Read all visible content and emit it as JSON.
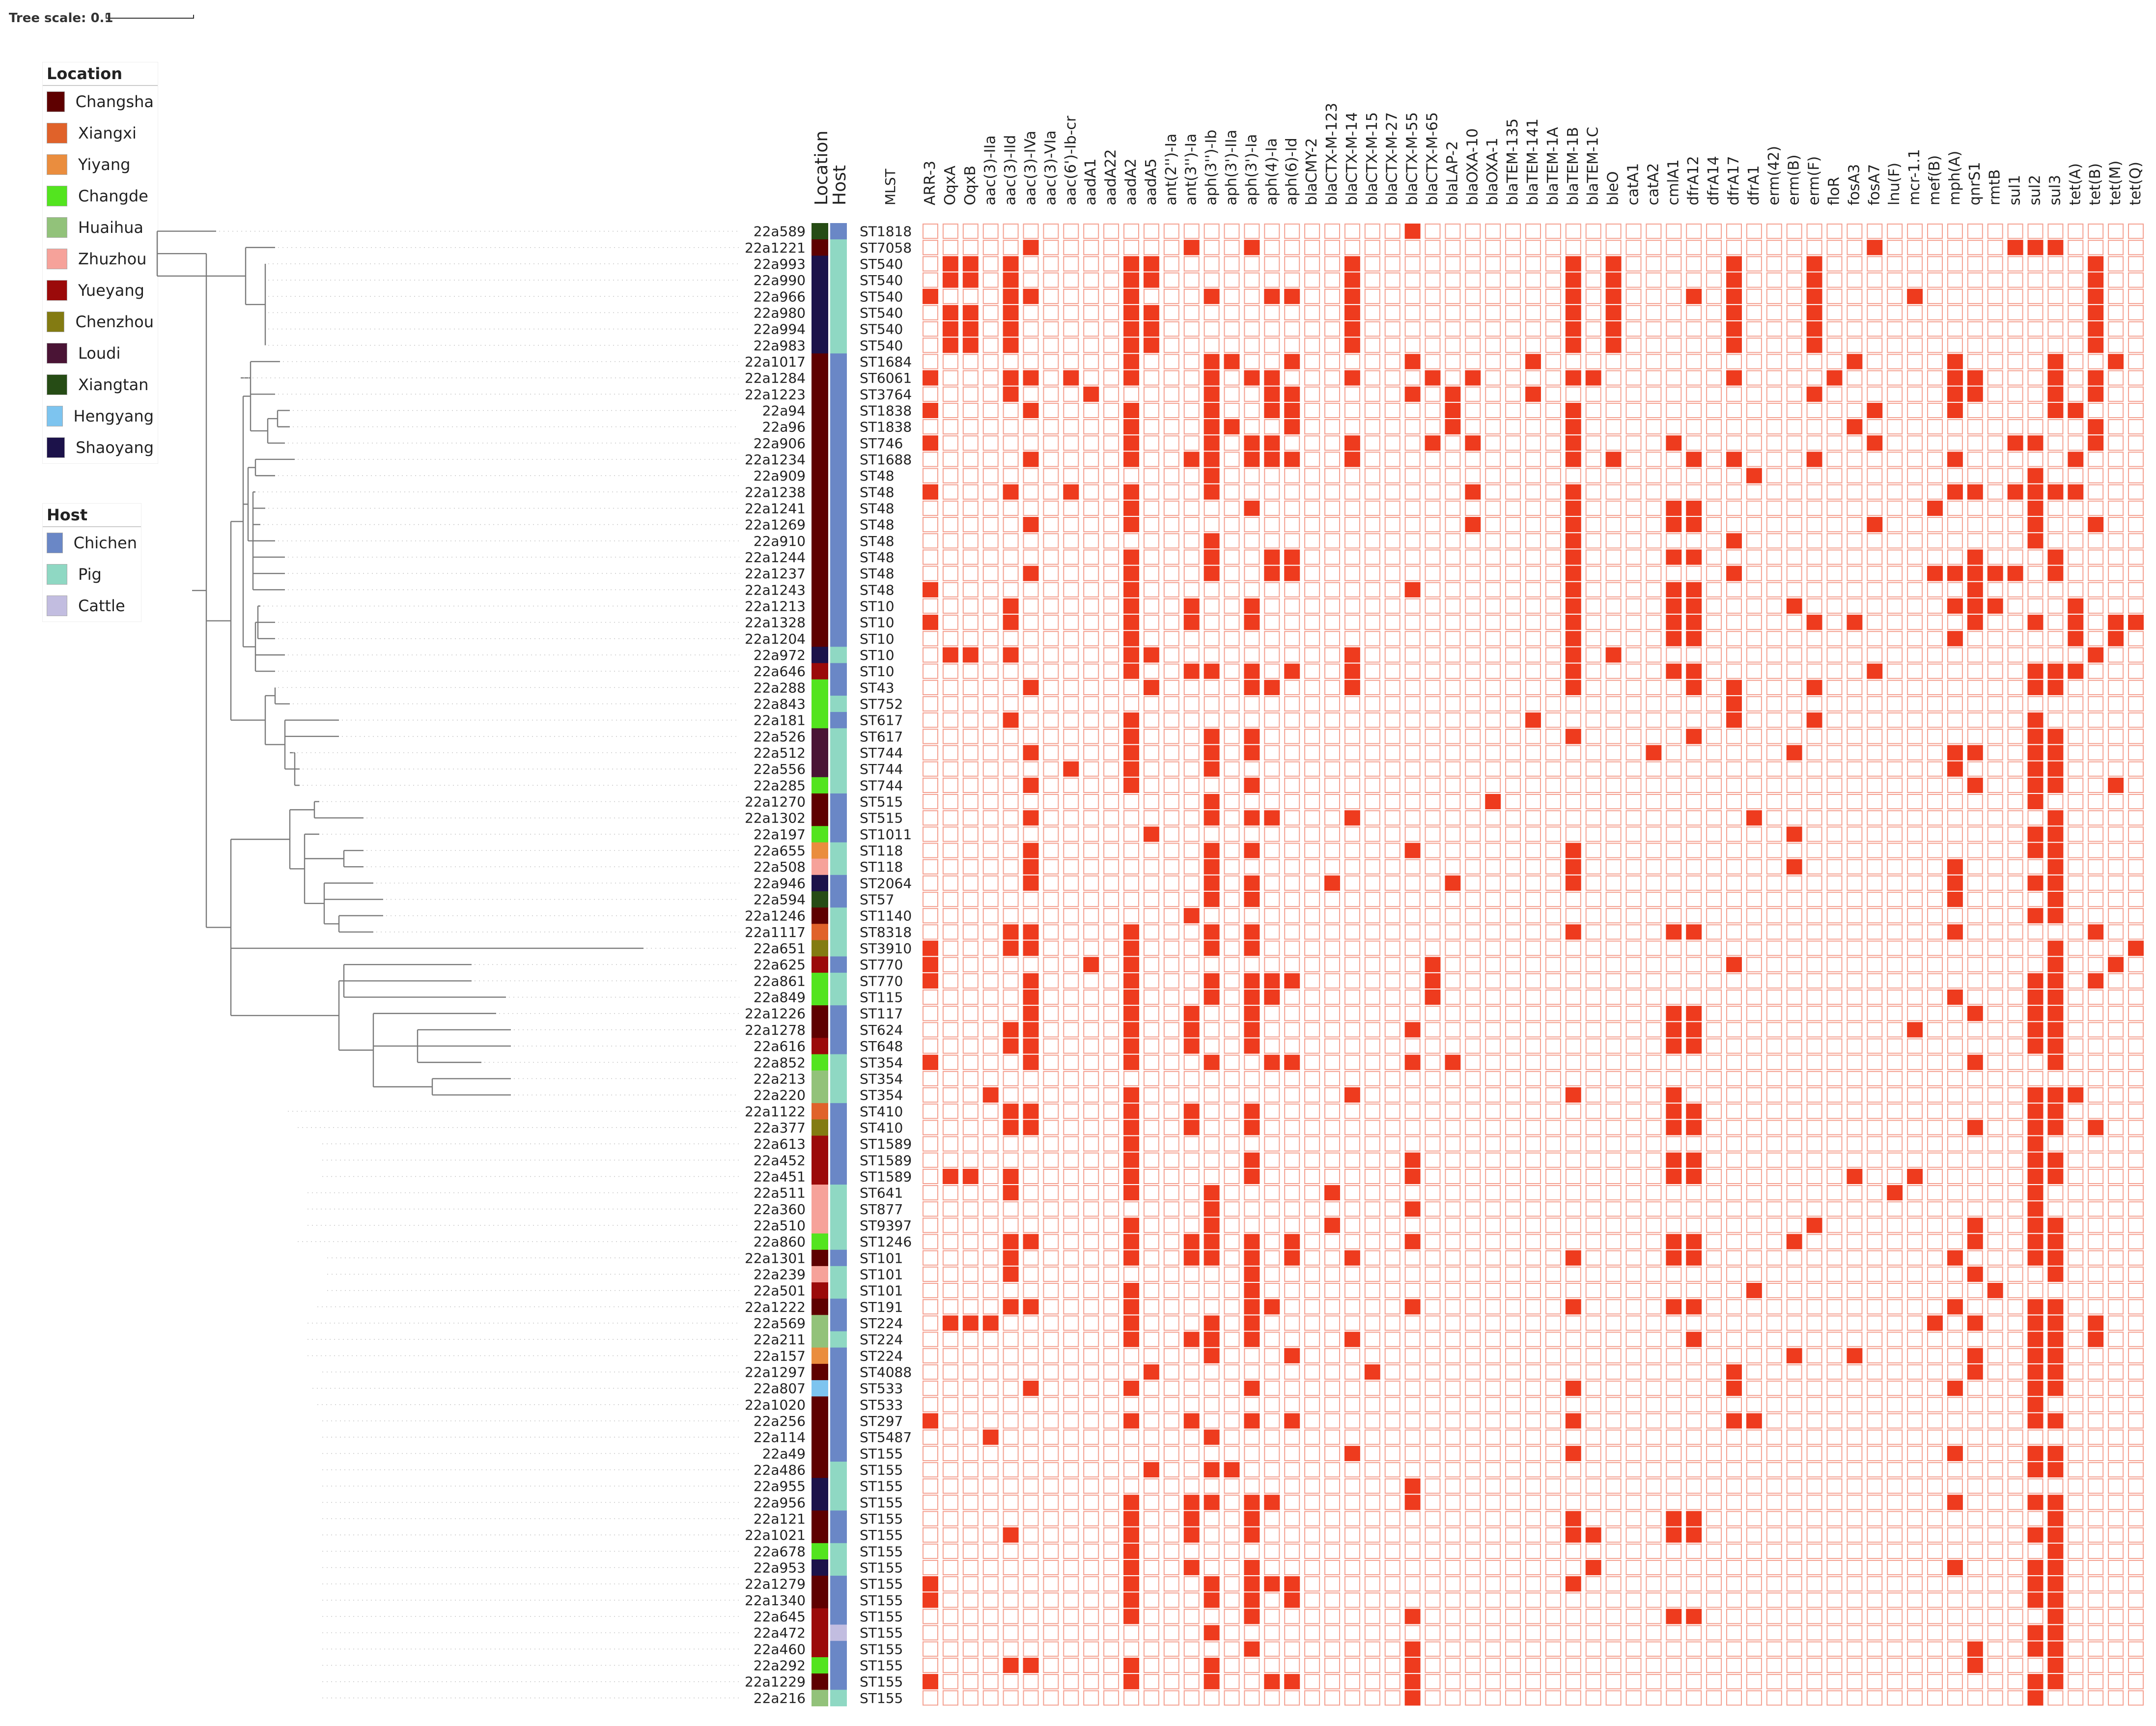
{
  "scale": {
    "label": "Tree scale: 0.1"
  },
  "headers": {
    "location": "Location",
    "host": "Host",
    "mlst": "MLST"
  },
  "legend_location": {
    "title": "Location",
    "items": [
      {
        "label": "Changsha",
        "color": "#5e0000"
      },
      {
        "label": "Xiangxi",
        "color": "#e0622a"
      },
      {
        "label": "Yiyang",
        "color": "#ea8d3e"
      },
      {
        "label": "Changde",
        "color": "#53e41f"
      },
      {
        "label": "Huaihua",
        "color": "#92c27a"
      },
      {
        "label": "Zhuzhou",
        "color": "#f6a29a"
      },
      {
        "label": "Yueyang",
        "color": "#9b0a0a"
      },
      {
        "label": "Chenzhou",
        "color": "#837b12"
      },
      {
        "label": "Loudi",
        "color": "#4a1435"
      },
      {
        "label": "Xiangtan",
        "color": "#264c15"
      },
      {
        "label": "Hengyang",
        "color": "#7dc4ef"
      },
      {
        "label": "Shaoyang",
        "color": "#1c124a"
      }
    ]
  },
  "legend_host": {
    "title": "Host",
    "items": [
      {
        "label": "Chichen",
        "color": "#6a87c6"
      },
      {
        "label": "Pig",
        "color": "#8fd8c3"
      },
      {
        "label": "Cattle",
        "color": "#c2bde0"
      }
    ]
  },
  "colors": {
    "present": "#ee3b1e",
    "absent_stroke": "#f4a090",
    "tree": "#7a7a7a",
    "dots": "#c8c8c8"
  },
  "genes": [
    "ARR-3",
    "OqxA",
    "OqxB",
    "aac(3)-IIa",
    "aac(3)-IId",
    "aac(3)-IVa",
    "aac(3)-VIa",
    "aac(6')-Ib-cr",
    "aadA1",
    "aadA22",
    "aadA2",
    "aadA5",
    "ant(2'')-Ia",
    "ant(3'')-Ia",
    "aph(3'')-Ib",
    "aph(3')-IIa",
    "aph(3')-Ia",
    "aph(4)-Ia",
    "aph(6)-Id",
    "blaCMY-2",
    "blaCTX-M-123",
    "blaCTX-M-14",
    "blaCTX-M-15",
    "blaCTX-M-27",
    "blaCTX-M-55",
    "blaCTX-M-65",
    "blaLAP-2",
    "blaOXA-10",
    "blaOXA-1",
    "blaTEM-135",
    "blaTEM-141",
    "blaTEM-1A",
    "blaTEM-1B",
    "blaTEM-1C",
    "bleO",
    "catA1",
    "catA2",
    "cmlA1",
    "dfrA12",
    "dfrA14",
    "dfrA17",
    "dfrA1",
    "erm(42)",
    "erm(B)",
    "erm(F)",
    "floR",
    "fosA3",
    "fosA7",
    "lnu(F)",
    "mcr-1.1",
    "mef(B)",
    "mph(A)",
    "qnrS1",
    "rmtB",
    "sul1",
    "sul2",
    "sul3",
    "tet(A)",
    "tet(B)",
    "tet(M)",
    "tet(Q)"
  ],
  "samples": [
    {
      "id": "22a589",
      "st": "ST1818",
      "loc": "Xiangtan",
      "host": "Chichen"
    },
    {
      "id": "22a1221",
      "st": "ST7058",
      "loc": "Changsha",
      "host": "Pig"
    },
    {
      "id": "22a993",
      "st": "ST540",
      "loc": "Shaoyang",
      "host": "Pig"
    },
    {
      "id": "22a990",
      "st": "ST540",
      "loc": "Shaoyang",
      "host": "Pig"
    },
    {
      "id": "22a966",
      "st": "ST540",
      "loc": "Shaoyang",
      "host": "Pig"
    },
    {
      "id": "22a980",
      "st": "ST540",
      "loc": "Shaoyang",
      "host": "Pig"
    },
    {
      "id": "22a994",
      "st": "ST540",
      "loc": "Shaoyang",
      "host": "Pig"
    },
    {
      "id": "22a983",
      "st": "ST540",
      "loc": "Shaoyang",
      "host": "Pig"
    },
    {
      "id": "22a1017",
      "st": "ST1684",
      "loc": "Changsha",
      "host": "Chichen"
    },
    {
      "id": "22a1284",
      "st": "ST6061",
      "loc": "Changsha",
      "host": "Chichen"
    },
    {
      "id": "22a1223",
      "st": "ST3764",
      "loc": "Changsha",
      "host": "Chichen"
    },
    {
      "id": "22a94",
      "st": "ST1838",
      "loc": "Changsha",
      "host": "Chichen"
    },
    {
      "id": "22a96",
      "st": "ST1838",
      "loc": "Changsha",
      "host": "Chichen"
    },
    {
      "id": "22a906",
      "st": "ST746",
      "loc": "Changsha",
      "host": "Chichen"
    },
    {
      "id": "22a1234",
      "st": "ST1688",
      "loc": "Changsha",
      "host": "Chichen"
    },
    {
      "id": "22a909",
      "st": "ST48",
      "loc": "Changsha",
      "host": "Chichen"
    },
    {
      "id": "22a1238",
      "st": "ST48",
      "loc": "Changsha",
      "host": "Chichen"
    },
    {
      "id": "22a1241",
      "st": "ST48",
      "loc": "Changsha",
      "host": "Chichen"
    },
    {
      "id": "22a1269",
      "st": "ST48",
      "loc": "Changsha",
      "host": "Chichen"
    },
    {
      "id": "22a910",
      "st": "ST48",
      "loc": "Changsha",
      "host": "Chichen"
    },
    {
      "id": "22a1244",
      "st": "ST48",
      "loc": "Changsha",
      "host": "Chichen"
    },
    {
      "id": "22a1237",
      "st": "ST48",
      "loc": "Changsha",
      "host": "Chichen"
    },
    {
      "id": "22a1243",
      "st": "ST48",
      "loc": "Changsha",
      "host": "Chichen"
    },
    {
      "id": "22a1213",
      "st": "ST10",
      "loc": "Changsha",
      "host": "Chichen"
    },
    {
      "id": "22a1328",
      "st": "ST10",
      "loc": "Changsha",
      "host": "Chichen"
    },
    {
      "id": "22a1204",
      "st": "ST10",
      "loc": "Changsha",
      "host": "Chichen"
    },
    {
      "id": "22a972",
      "st": "ST10",
      "loc": "Shaoyang",
      "host": "Pig"
    },
    {
      "id": "22a646",
      "st": "ST10",
      "loc": "Yueyang",
      "host": "Chichen"
    },
    {
      "id": "22a288",
      "st": "ST43",
      "loc": "Changde",
      "host": "Chichen"
    },
    {
      "id": "22a843",
      "st": "ST752",
      "loc": "Changde",
      "host": "Pig"
    },
    {
      "id": "22a181",
      "st": "ST617",
      "loc": "Changde",
      "host": "Chichen"
    },
    {
      "id": "22a526",
      "st": "ST617",
      "loc": "Loudi",
      "host": "Pig"
    },
    {
      "id": "22a512",
      "st": "ST744",
      "loc": "Loudi",
      "host": "Pig"
    },
    {
      "id": "22a556",
      "st": "ST744",
      "loc": "Loudi",
      "host": "Pig"
    },
    {
      "id": "22a285",
      "st": "ST744",
      "loc": "Changde",
      "host": "Pig"
    },
    {
      "id": "22a1270",
      "st": "ST515",
      "loc": "Changsha",
      "host": "Chichen"
    },
    {
      "id": "22a1302",
      "st": "ST515",
      "loc": "Changsha",
      "host": "Chichen"
    },
    {
      "id": "22a197",
      "st": "ST1011",
      "loc": "Changde",
      "host": "Chichen"
    },
    {
      "id": "22a655",
      "st": "ST118",
      "loc": "Yiyang",
      "host": "Pig"
    },
    {
      "id": "22a508",
      "st": "ST118",
      "loc": "Zhuzhou",
      "host": "Pig"
    },
    {
      "id": "22a946",
      "st": "ST2064",
      "loc": "Shaoyang",
      "host": "Chichen"
    },
    {
      "id": "22a594",
      "st": "ST57",
      "loc": "Xiangtan",
      "host": "Chichen"
    },
    {
      "id": "22a1246",
      "st": "ST1140",
      "loc": "Changsha",
      "host": "Pig"
    },
    {
      "id": "22a1117",
      "st": "ST8318",
      "loc": "Xiangxi",
      "host": "Pig"
    },
    {
      "id": "22a651",
      "st": "ST3910",
      "loc": "Chenzhou",
      "host": "Pig"
    },
    {
      "id": "22a625",
      "st": "ST770",
      "loc": "Yueyang",
      "host": "Chichen"
    },
    {
      "id": "22a861",
      "st": "ST770",
      "loc": "Changde",
      "host": "Pig"
    },
    {
      "id": "22a849",
      "st": "ST115",
      "loc": "Changde",
      "host": "Pig"
    },
    {
      "id": "22a1226",
      "st": "ST117",
      "loc": "Changsha",
      "host": "Chichen"
    },
    {
      "id": "22a1278",
      "st": "ST624",
      "loc": "Changsha",
      "host": "Chichen"
    },
    {
      "id": "22a616",
      "st": "ST648",
      "loc": "Yueyang",
      "host": "Chichen"
    },
    {
      "id": "22a852",
      "st": "ST354",
      "loc": "Changde",
      "host": "Pig"
    },
    {
      "id": "22a213",
      "st": "ST354",
      "loc": "Huaihua",
      "host": "Pig"
    },
    {
      "id": "22a220",
      "st": "ST354",
      "loc": "Huaihua",
      "host": "Pig"
    },
    {
      "id": "22a1122",
      "st": "ST410",
      "loc": "Xiangxi",
      "host": "Chichen"
    },
    {
      "id": "22a377",
      "st": "ST410",
      "loc": "Chenzhou",
      "host": "Chichen"
    },
    {
      "id": "22a613",
      "st": "ST1589",
      "loc": "Yueyang",
      "host": "Chichen"
    },
    {
      "id": "22a452",
      "st": "ST1589",
      "loc": "Yueyang",
      "host": "Chichen"
    },
    {
      "id": "22a451",
      "st": "ST1589",
      "loc": "Yueyang",
      "host": "Chichen"
    },
    {
      "id": "22a511",
      "st": "ST641",
      "loc": "Zhuzhou",
      "host": "Pig"
    },
    {
      "id": "22a360",
      "st": "ST877",
      "loc": "Zhuzhou",
      "host": "Pig"
    },
    {
      "id": "22a510",
      "st": "ST9397",
      "loc": "Zhuzhou",
      "host": "Pig"
    },
    {
      "id": "22a860",
      "st": "ST1246",
      "loc": "Changde",
      "host": "Pig"
    },
    {
      "id": "22a1301",
      "st": "ST101",
      "loc": "Changsha",
      "host": "Chichen"
    },
    {
      "id": "22a239",
      "st": "ST101",
      "loc": "Zhuzhou",
      "host": "Pig"
    },
    {
      "id": "22a501",
      "st": "ST101",
      "loc": "Yueyang",
      "host": "Pig"
    },
    {
      "id": "22a1222",
      "st": "ST191",
      "loc": "Changsha",
      "host": "Chichen"
    },
    {
      "id": "22a569",
      "st": "ST224",
      "loc": "Huaihua",
      "host": "Chichen"
    },
    {
      "id": "22a211",
      "st": "ST224",
      "loc": "Huaihua",
      "host": "Pig"
    },
    {
      "id": "22a157",
      "st": "ST224",
      "loc": "Yiyang",
      "host": "Chichen"
    },
    {
      "id": "22a1297",
      "st": "ST4088",
      "loc": "Changsha",
      "host": "Chichen"
    },
    {
      "id": "22a807",
      "st": "ST533",
      "loc": "Hengyang",
      "host": "Chichen"
    },
    {
      "id": "22a1020",
      "st": "ST533",
      "loc": "Changsha",
      "host": "Chichen"
    },
    {
      "id": "22a256",
      "st": "ST297",
      "loc": "Changsha",
      "host": "Chichen"
    },
    {
      "id": "22a114",
      "st": "ST5487",
      "loc": "Changsha",
      "host": "Chichen"
    },
    {
      "id": "22a49",
      "st": "ST155",
      "loc": "Changsha",
      "host": "Chichen"
    },
    {
      "id": "22a486",
      "st": "ST155",
      "loc": "Changsha",
      "host": "Pig"
    },
    {
      "id": "22a955",
      "st": "ST155",
      "loc": "Shaoyang",
      "host": "Pig"
    },
    {
      "id": "22a956",
      "st": "ST155",
      "loc": "Shaoyang",
      "host": "Pig"
    },
    {
      "id": "22a121",
      "st": "ST155",
      "loc": "Changsha",
      "host": "Chichen"
    },
    {
      "id": "22a1021",
      "st": "ST155",
      "loc": "Changsha",
      "host": "Chichen"
    },
    {
      "id": "22a678",
      "st": "ST155",
      "loc": "Changde",
      "host": "Pig"
    },
    {
      "id": "22a953",
      "st": "ST155",
      "loc": "Shaoyang",
      "host": "Pig"
    },
    {
      "id": "22a1279",
      "st": "ST155",
      "loc": "Changsha",
      "host": "Chichen"
    },
    {
      "id": "22a1340",
      "st": "ST155",
      "loc": "Changsha",
      "host": "Chichen"
    },
    {
      "id": "22a645",
      "st": "ST155",
      "loc": "Yueyang",
      "host": "Chichen"
    },
    {
      "id": "22a472",
      "st": "ST155",
      "loc": "Yueyang",
      "host": "Cattle"
    },
    {
      "id": "22a460",
      "st": "ST155",
      "loc": "Yueyang",
      "host": "Chichen"
    },
    {
      "id": "22a292",
      "st": "ST155",
      "loc": "Changde",
      "host": "Chichen"
    },
    {
      "id": "22a1229",
      "st": "ST155",
      "loc": "Changsha",
      "host": "Chichen"
    },
    {
      "id": "22a216",
      "st": "ST155",
      "loc": "Huaihua",
      "host": "Pig"
    }
  ],
  "matrix": [
    "0000000000000000000000001000000000000000000000000000000000000",
    "0000010000000100100000000000000000000000000000010000001110000",
    "0110100000110000000001000000000010100000100010000000000000100",
    "0110100000110000000001000000000010100000100010000000000000100",
    "1000110000100010011001000000000010100010100010000100000000100",
    "0110100000110000000001000000000010100000100010000000000000100",
    "0110100000110000000001000000000010100000100010000000000000100",
    "0110100000110000000001000000000010100000100010000000000000100",
    "0000000000100011001000001000001000000000000000100001000010010",
    "1000110100100010110001000101000011000000100001000001100010100",
    "0000100010000010011000001010001000000000000010000001100010100",
    "1000010000100010011000000010000010000000000000010001000011000",
    "0000000000100011001000000010000010000000000000100000000000100",
    "1000000000100010110001000101000010000100000000010000001100100",
    "0000010000100110111001000000000010100010100010000001000001000",
    "0000000000000010000000000000000000000000010000000000000100000",
    "1000100100100010000000000001000010000000000000000001101111000",
    "0000000000100000100000000000000010000110000000000010000100000",
    "0000010000100000000000000001000010000110000000010000000100100",
    "0000000000000010000000000000000010000000100000000000000100000",
    "0000000000100010011000000000000010000110000000000000100010000",
    "0000010000100010011000000000000010000000100000000011111010000",
    "1000000000100000000000001000000010000110000000000000100000000",
    "0000100000100100100000000000000010000110000100000001110001000",
    "1000100000100100100000000000000010000110000010100000100101011",
    "0000000000100000000000000000000010000110000000000001000001010",
    "0110100000110000000001000000000010100000000000000000000000100",
    "0000000000100110101001000000000010000110000000010000000111000",
    "0000010000010000110001000000000010000010100010000000000110000",
    "0000000000000000000000000000000000000000100000000000000000000",
    "0000100000100000000000000000001000000000100010000000000100000",
    "0000000000100010100000000000000010000010000000000000000110000",
    "0000010000100010100000000000000000001000000100000001100110000",
    "0000000100100010000000000000000000000000000000000001000110000",
    "0000010000100000100000000000000000000000000000000000100110010",
    "0000000000000010000000000000100000000000000000000000000100000",
    "0000010000000010110001000000000000000000010000000000000010000",
    "0000000000010000000000000000000000000000000100000000000110000",
    "0000010000000010100000001000000010000000000000000000000110000",
    "0000010000000010000000000000000010000000000100000001000010000",
    "0000010000000010100010000010000010000000000000000001000110000",
    "0000000000000010100000000000000000000000000000000001000010000",
    "0000000000000100000000000000000000000000000000000000000110000",
    "0000110000100010100000000000000010000110000000000001000000100",
    "1000110000100010100000000000000000000000000000000000000010001",
    "1000000010100000000000000100000000000000100000000000000010010",
    "1000010000100010111000000100000000000000000000000000000110100",
    "0000010000100010110000000100000000000000000000000001000110000",
    "0000010000100100100000000000000000000110000000000000100110000",
    "0000110000100100100000001000000000000110000000000100000110000",
    "0000110000100100100000000000000000000110000000000000000110000",
    "1000010000100010011000001010000000000000000000000000100010000",
    "0000000000000000000000000000000000000000000000000000000000000",
    "0001000000100000000001000000000010000100000000000000000111000",
    "0000110000100100100000000000000000000110000000000000000110000",
    "0000110000100100100000000000000000000110000000000000100110100",
    "0000000000100000000000000000000000000000000000000000000100000",
    "0000000000100000100000001000000000000110000000000000000110000",
    "0110100000100000100000001000000000000110000000100100000110000",
    "0000100000100010000010000000000000000000000000001000000100000",
    "0000000000000010000000001000000000000000000000000000000100000",
    "0000000000100010000010000000000000000000000010000000100110000",
    "0000110000100110101000001000000000000110000100000000100110000",
    "0000100000100110101001000000000010000110000000000001000110000",
    "0000100000000000100000000000000000000000000000000000100010000",
    "0000000000100000100000000000000000000000010000000000010000000",
    "0000110000100000110000001000000010000110000000000001000110000",
    "0111000000100010100000000000000000000000000000000010100110100",
    "0000000000100110100001000000000000000010000000000000000110100",
    "0000000000000010001000000000000000000000000100100000100110000",
    "0000000000010000000000100000000000000000100000000000100110000",
    "0000010000100000100000000000000010000000100000000001000110000",
    "0000000000000000000000000000000000000000000000000000000100000",
    "1000000000100100101000000000000010000000110000000000000110000",
    "0001000000000010000000000000000000000000000000000000000000000",
    "0000000000000000000001000000000010000000000000000001000110000",
    "0000000000010011000000000000000000000000000000000000000110000",
    "0000000000000000000000001000000000000000000000000000000000000",
    "0000000000100110110000001000000000000000000000000001000110000",
    "0000000000100100100000000000000010000110000000000000000010000",
    "0000100000100100100000000000000011000110000000000000000110000",
    "0000000000100000000000000000000000000000000000000000000010000",
    "0000000000100100100000000000000001000000000000000001000110000",
    "1000000000100010111000000000000010000000000000000000000110000",
    "1000000000100010101000000000000000000000000000000000000110000",
    "0000000000100000100000001000000000000110000000000000000010000",
    "0000000000000010000000000000000000000000000000000000000110000",
    "0000000000000000100000001000000000000000000000000000100110000",
    "0000110000100010000000001000000000000000000000000000100010000",
    "1000000000100010011000001000000000000000000000000000000110000",
    "0000000000000000000000001000000000000000000000000000000100000"
  ]
}
